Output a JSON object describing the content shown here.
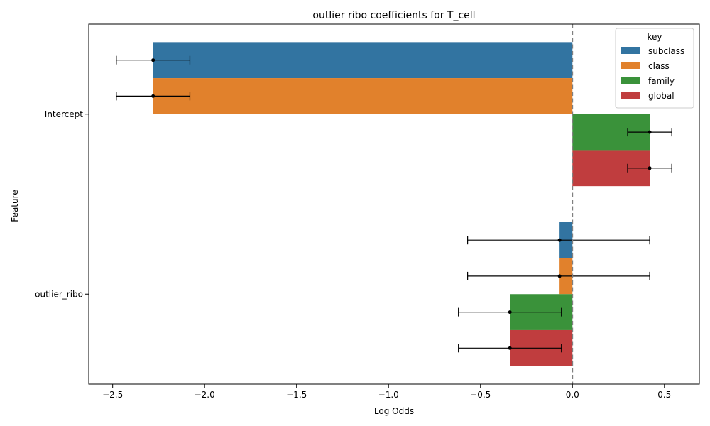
{
  "chart_data": {
    "type": "bar",
    "orientation": "horizontal",
    "title": "outlier ribo coefficients for T_cell",
    "xlabel": "Log Odds",
    "ylabel": "Feature",
    "categories": [
      "Intercept",
      "outlier_ribo"
    ],
    "xlim": [
      -2.63,
      0.69
    ],
    "xticks": [
      -2.5,
      -2.0,
      -1.5,
      -1.0,
      -0.5,
      0.0,
      0.5
    ],
    "xtick_labels": [
      "−2.5",
      "−2.0",
      "−1.5",
      "−1.0",
      "−0.5",
      "0.0",
      "0.5"
    ],
    "reference_line": 0.0,
    "legend": {
      "title": "key",
      "position": "top-right"
    },
    "series": [
      {
        "name": "subclass",
        "color": "#3274a1",
        "values": [
          -2.28,
          -0.07
        ],
        "ci_low": [
          -2.48,
          -0.57
        ],
        "ci_high": [
          -2.08,
          0.42
        ]
      },
      {
        "name": "class",
        "color": "#e1812c",
        "values": [
          -2.28,
          -0.07
        ],
        "ci_low": [
          -2.48,
          -0.57
        ],
        "ci_high": [
          -2.08,
          0.42
        ]
      },
      {
        "name": "family",
        "color": "#3a923a",
        "values": [
          0.42,
          -0.34
        ],
        "ci_low": [
          0.3,
          -0.62
        ],
        "ci_high": [
          0.54,
          -0.06
        ]
      },
      {
        "name": "global",
        "color": "#c03d3e",
        "values": [
          0.42,
          -0.34
        ],
        "ci_low": [
          0.3,
          -0.62
        ],
        "ci_high": [
          0.54,
          -0.06
        ]
      }
    ]
  }
}
